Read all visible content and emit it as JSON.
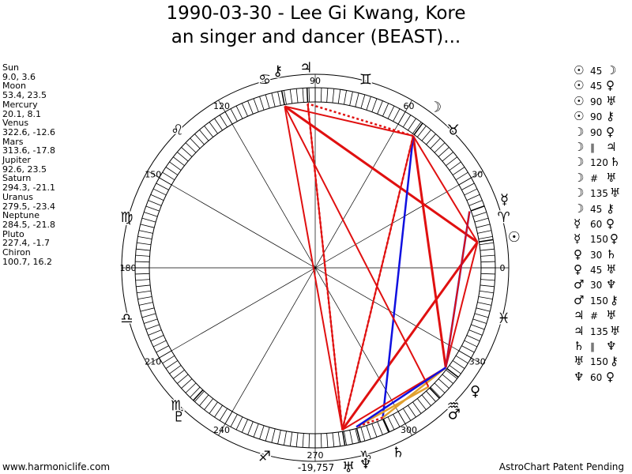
{
  "title": {
    "line1": "1990-03-30 - Lee Gi Kwang, Kore",
    "line2": "an singer and dancer (BEAST)..."
  },
  "planets": [
    {
      "name": "Sun",
      "pos": "9.0, 3.6",
      "glyph": "☉",
      "color": "#000000"
    },
    {
      "name": "Moon",
      "pos": "53.4, 23.5",
      "glyph": "☽",
      "color": "#000000"
    },
    {
      "name": "Mercury",
      "pos": "20.1, 8.1",
      "glyph": "☿",
      "color": "#000000"
    },
    {
      "name": "Venus",
      "pos": "322.6, -12.6",
      "glyph": "♀",
      "color": "#000000"
    },
    {
      "name": "Mars",
      "pos": "313.6, -17.8",
      "glyph": "♂",
      "color": "#000000"
    },
    {
      "name": "Jupiter",
      "pos": "92.6, 23.5",
      "glyph": "♃",
      "color": "#000000"
    },
    {
      "name": "Saturn",
      "pos": "294.3, -21.1",
      "glyph": "♄",
      "color": "#000000"
    },
    {
      "name": "Uranus",
      "pos": "279.5, -23.4",
      "glyph": "♅",
      "color": "#000000"
    },
    {
      "name": "Neptune",
      "pos": "284.5, -21.8",
      "glyph": "♆",
      "color": "#000000"
    },
    {
      "name": "Pluto",
      "pos": "227.4, -1.7",
      "glyph": "♇",
      "color": "#000000"
    },
    {
      "name": "Chiron",
      "pos": "100.7, 16.2",
      "glyph": "⚷",
      "color": "#000000"
    }
  ],
  "aspects": [
    {
      "a": "☉",
      "n": "45",
      "b": "☽"
    },
    {
      "a": "☉",
      "n": "45",
      "b": "♀"
    },
    {
      "a": "☉",
      "n": "90",
      "b": "♅"
    },
    {
      "a": "☉",
      "n": "90",
      "b": "⚷"
    },
    {
      "a": "☽",
      "n": "90",
      "b": "♀"
    },
    {
      "a": "☽",
      "n": "∥",
      "b": "♃"
    },
    {
      "a": "☽",
      "n": "120",
      "b": "♄"
    },
    {
      "a": "☽",
      "n": "#",
      "b": "♅"
    },
    {
      "a": "☽",
      "n": "135",
      "b": "♅"
    },
    {
      "a": "☽",
      "n": "45",
      "b": "⚷"
    },
    {
      "a": "☿",
      "n": "60",
      "b": "♀"
    },
    {
      "a": "☿",
      "n": "150",
      "b": "♀"
    },
    {
      "a": "♀",
      "n": "30",
      "b": "♄"
    },
    {
      "a": "♀",
      "n": "45",
      "b": "♅"
    },
    {
      "a": "♂",
      "n": "30",
      "b": "♆"
    },
    {
      "a": "♂",
      "n": "150",
      "b": "⚷"
    },
    {
      "a": "♃",
      "n": "#",
      "b": "♅"
    },
    {
      "a": "♃",
      "n": "135",
      "b": "♅"
    },
    {
      "a": "♄",
      "n": "∥",
      "b": "♆"
    },
    {
      "a": "♅",
      "n": "150",
      "b": "⚷"
    },
    {
      "a": "♆",
      "n": "60",
      "b": "♀"
    }
  ],
  "wheel": {
    "degree_labels": [
      "0",
      "30",
      "60",
      "90",
      "120",
      "150",
      "180",
      "210",
      "240",
      "270",
      "300",
      "330"
    ],
    "signs": [
      "♈",
      "♉",
      "♊",
      "♋",
      "♌",
      "♍",
      "♎",
      "♏",
      "♐",
      "♑",
      "♒",
      "♓"
    ]
  },
  "chart_number": "-19,757",
  "footer": {
    "left": "www.harmoniclife.com",
    "right": "AstroChart Patent Pending"
  },
  "colors": {
    "square_opposition": "#e01010",
    "trine_sextile": "#1010e0",
    "minor": "#e0a030",
    "parallel": "#e01010"
  }
}
